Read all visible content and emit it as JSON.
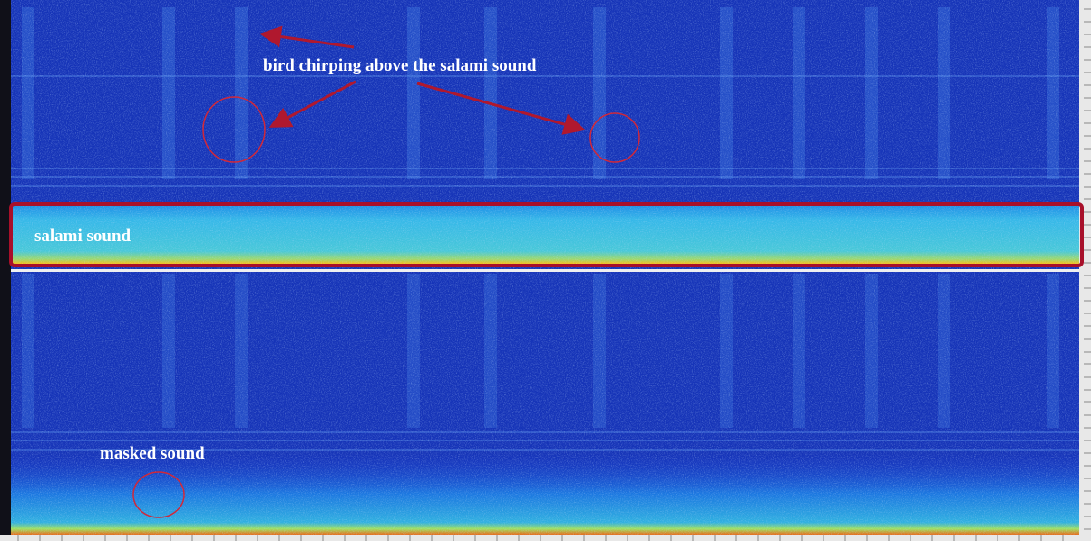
{
  "annotations": {
    "bird": "bird chirping above the salami sound",
    "salami": "salami sound",
    "masked": "masked sound"
  }
}
